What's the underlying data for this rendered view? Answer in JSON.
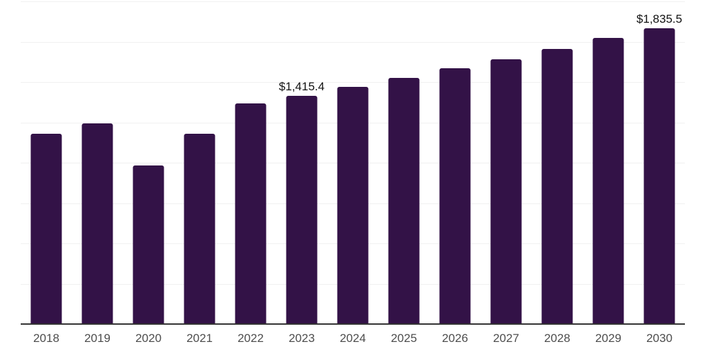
{
  "chart_data": {
    "type": "bar",
    "title": "",
    "xlabel": "",
    "ylabel": "",
    "categories": [
      "2018",
      "2019",
      "2020",
      "2021",
      "2022",
      "2023",
      "2024",
      "2025",
      "2026",
      "2027",
      "2028",
      "2029",
      "2030"
    ],
    "values": [
      1180,
      1244,
      983,
      1178,
      1366,
      1415.4,
      1470,
      1527,
      1584,
      1641,
      1705,
      1772,
      1835.5
    ],
    "data_labels": [
      "",
      "",
      "",
      "",
      "",
      "$1,415.4",
      "",
      "",
      "",
      "",
      "",
      "",
      "$1,835.5"
    ],
    "ylim": [
      0,
      2000
    ],
    "gridline_interval": 250,
    "grid": "horizontal",
    "legend": "none",
    "currency_unit": "$"
  },
  "colors": {
    "bar": "#331247",
    "gridline": "#f0f0f0",
    "axis_line": "#333333",
    "tick_label": "#4d4d4d",
    "data_label": "#111111",
    "background": "#ffffff"
  }
}
